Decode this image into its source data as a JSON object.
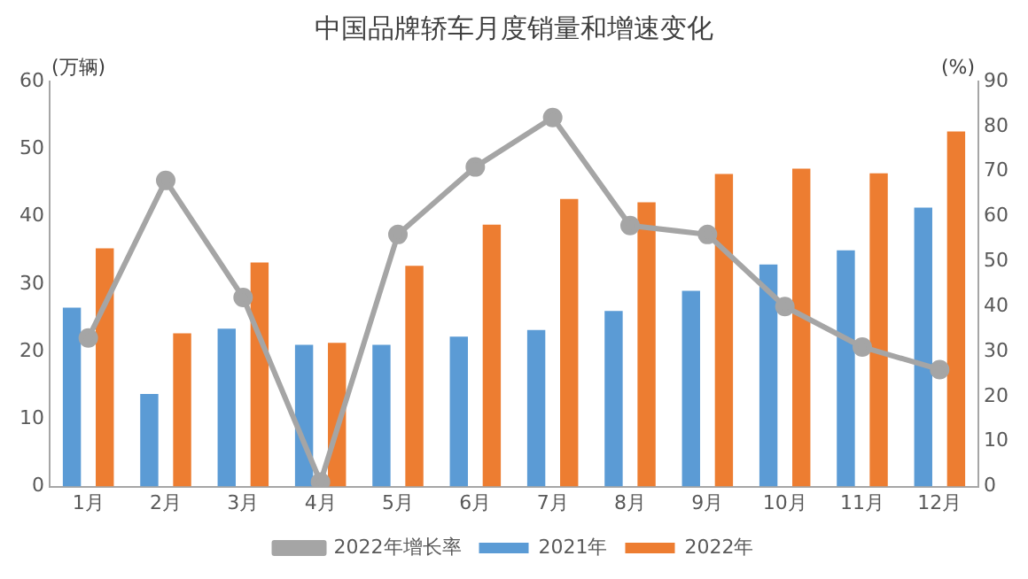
{
  "chart_data": {
    "type": "bar",
    "title": "中国品牌轿车月度销量和增速变化",
    "ylabel": "(万辆)",
    "y2label": "(%)",
    "categories": [
      "1月",
      "2月",
      "3月",
      "4月",
      "5月",
      "6月",
      "7月",
      "8月",
      "9月",
      "10月",
      "11月",
      "12月"
    ],
    "series": [
      {
        "name": "2021年",
        "color": "#5b9bd5",
        "values": [
          26.5,
          13.7,
          23.4,
          21.0,
          21.0,
          22.2,
          23.2,
          26.0,
          29.0,
          32.9,
          35.0,
          41.3
        ]
      },
      {
        "name": "2022年",
        "color": "#ed7d31",
        "values": [
          35.3,
          22.7,
          33.2,
          21.3,
          32.7,
          38.8,
          42.6,
          42.1,
          46.3,
          47.1,
          46.4,
          52.6
        ]
      },
      {
        "name": "2022年增长率",
        "type": "line",
        "axis": "y2",
        "color": "#a5a5a5",
        "marker": "circle",
        "values": [
          33,
          68,
          42,
          1,
          56,
          71,
          82,
          58,
          56,
          40,
          31,
          26
        ]
      }
    ],
    "ylim": [
      0,
      60
    ],
    "yticks": [
      0,
      10,
      20,
      30,
      40,
      50,
      60
    ],
    "y2lim": [
      0,
      90
    ],
    "y2ticks": [
      0,
      10,
      20,
      30,
      40,
      50,
      60,
      70,
      80,
      90
    ],
    "grid": false,
    "legend": "bottom"
  }
}
